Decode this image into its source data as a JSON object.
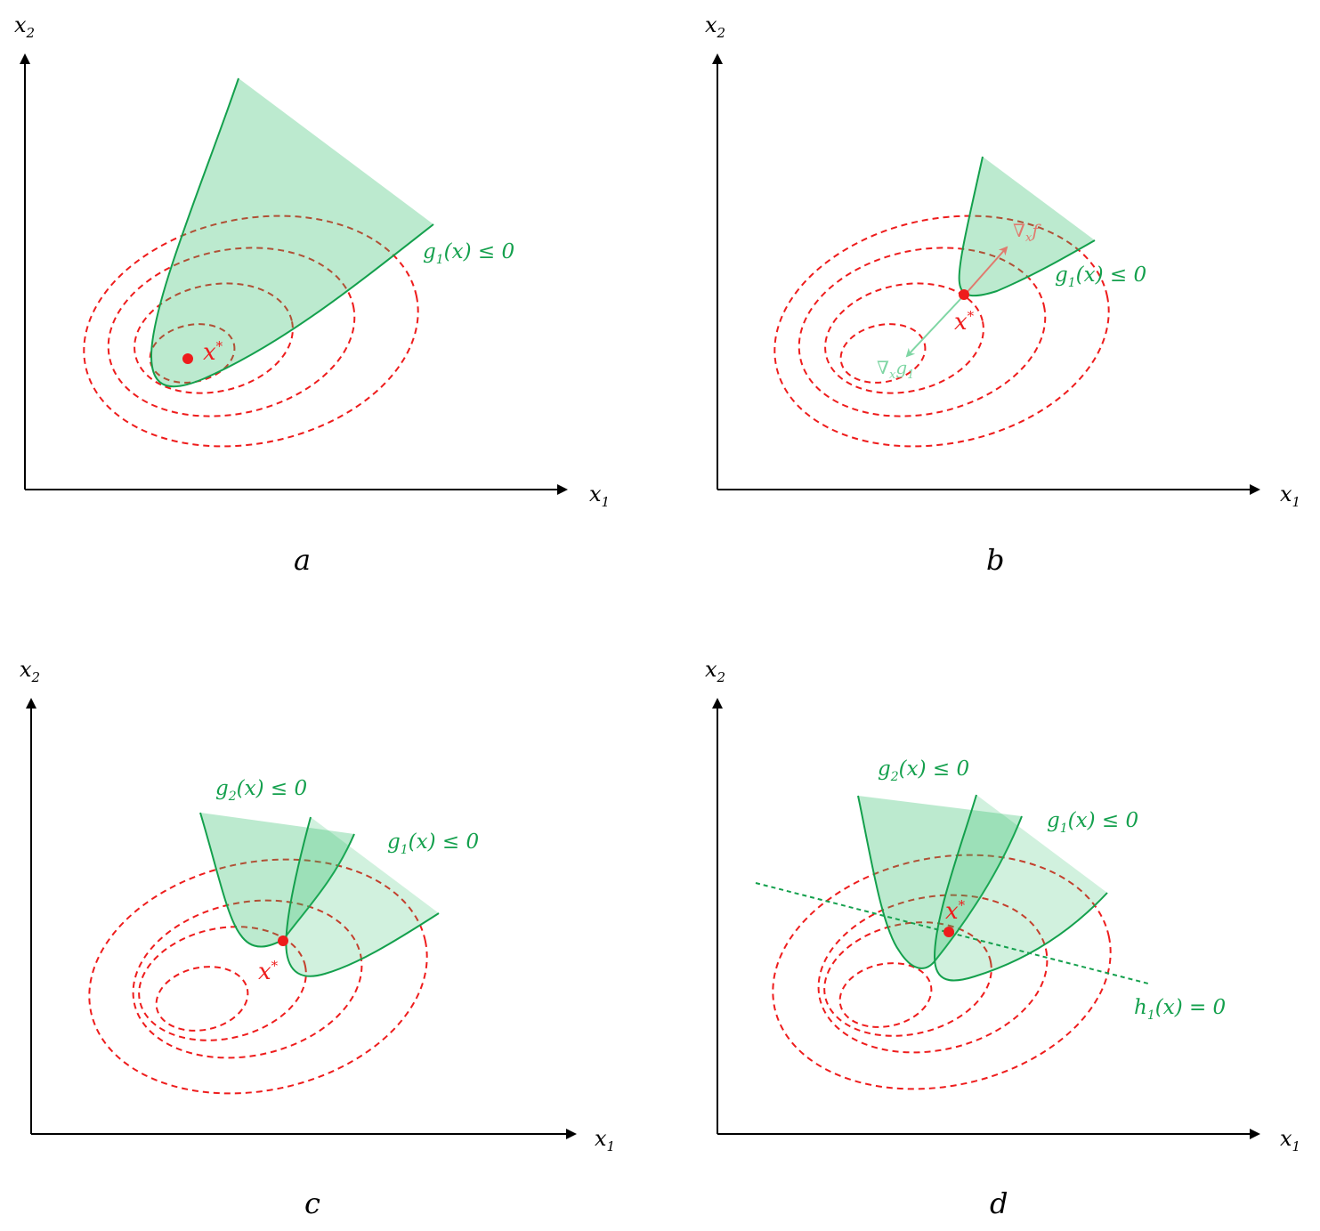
{
  "axes": {
    "x_label": "x",
    "x_sub": "1",
    "y_label": "x",
    "y_sub": "2"
  },
  "optimum": {
    "label": "x",
    "sup": "*"
  },
  "constraints": {
    "g1": {
      "name": "g",
      "sub": "1",
      "rest": "(x) ≤ 0"
    },
    "g2": {
      "name": "g",
      "sub": "2",
      "rest": "(x) ≤ 0"
    },
    "h1": {
      "name": "h",
      "sub": "1",
      "rest": "(x) = 0"
    }
  },
  "gradients": {
    "f": {
      "nabla": "∇",
      "sub": "x",
      "fn": "f"
    },
    "g1": {
      "nabla": "∇",
      "sub": "x",
      "fn": "g",
      "fn_sub": "1"
    }
  },
  "panels": {
    "a": "a",
    "b": "b",
    "c": "c",
    "d": "d"
  },
  "colors": {
    "contour": "#ee1c1c",
    "region": "#2ebd6b",
    "boundary": "#14a04d",
    "grad_f": "#e07a6e",
    "grad_g": "#7fd6a4"
  }
}
